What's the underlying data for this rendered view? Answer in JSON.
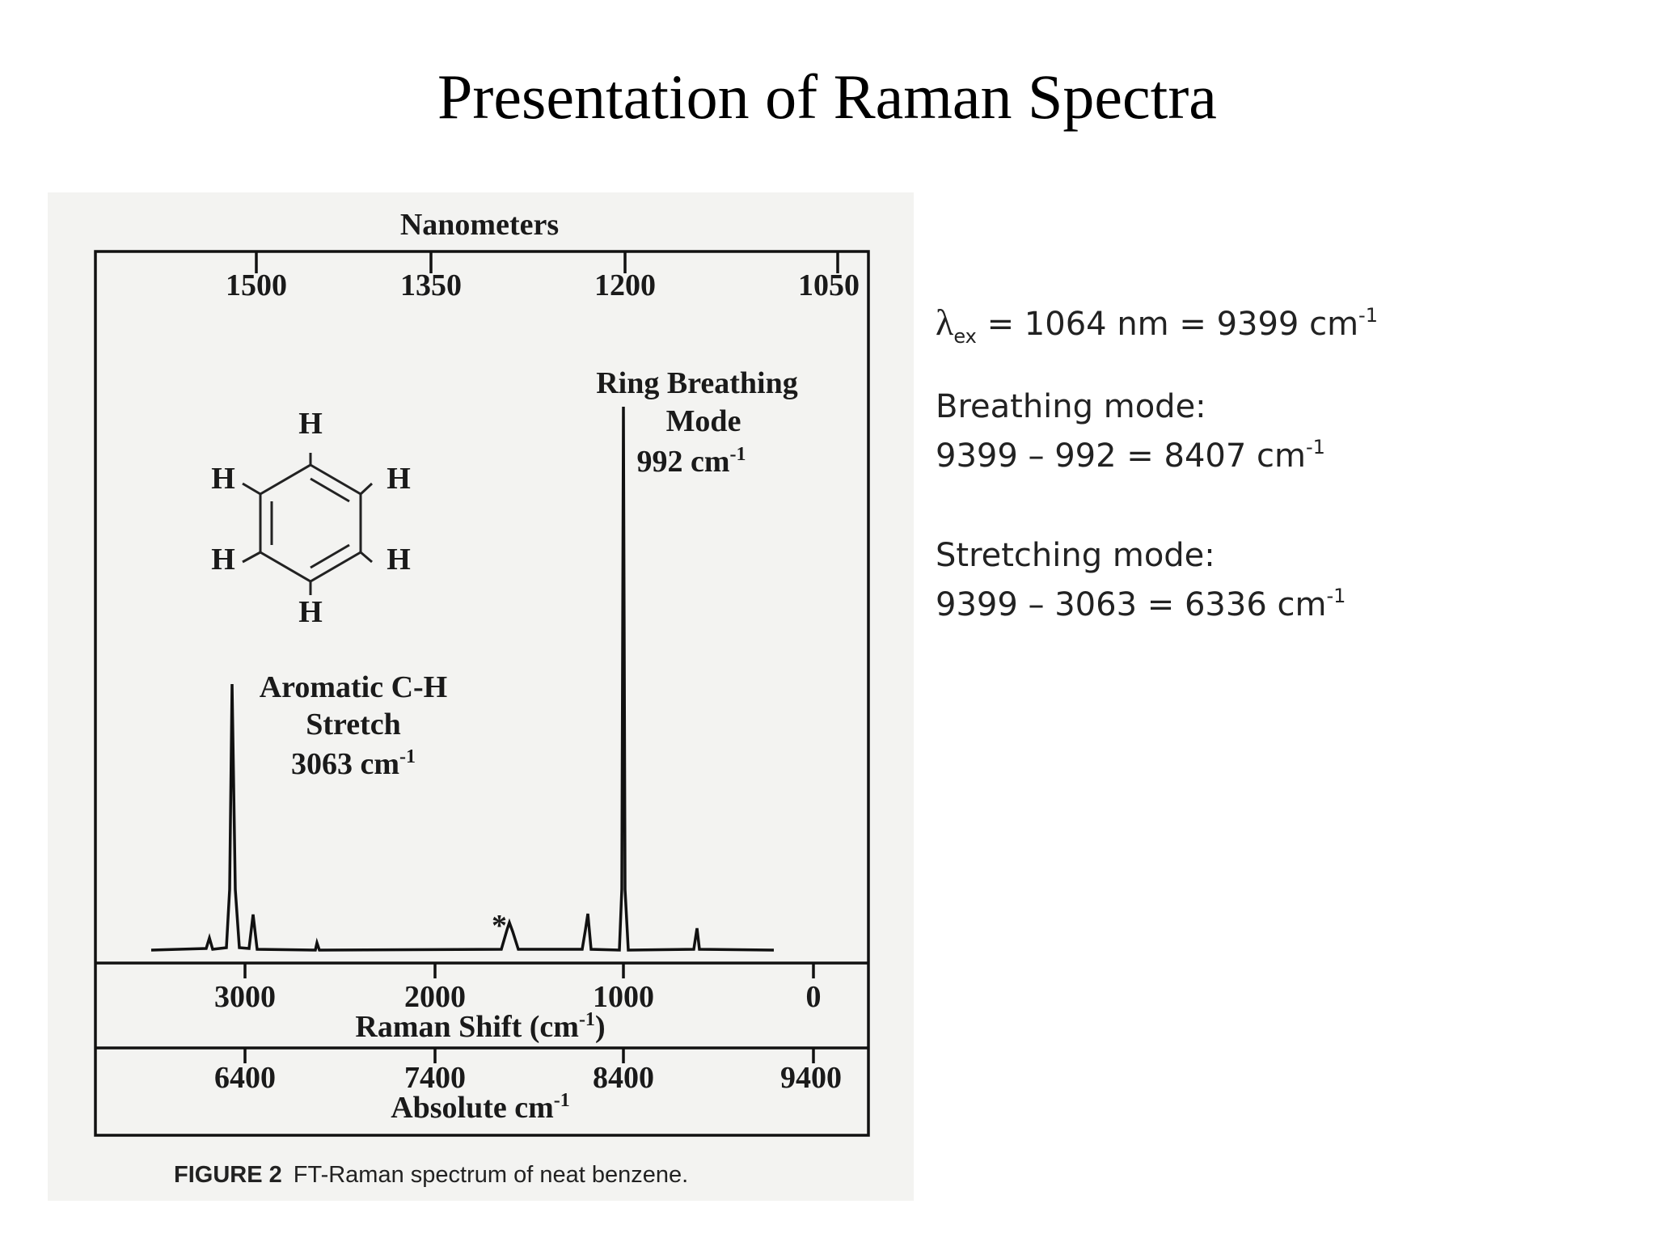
{
  "header": {
    "title": "Presentation of Raman Spectra"
  },
  "figure": {
    "top_axis_label": "Nanometers",
    "nanometer_ticks": [
      1500,
      1350,
      1200,
      1050
    ],
    "raman_ticks": [
      3000,
      2000,
      1000,
      0
    ],
    "raman_axis_label": {
      "text": "Raman Shift (cm",
      "sup": "-1",
      "close": ")"
    },
    "absolute_ticks": [
      6400,
      7400,
      8400,
      9400
    ],
    "absolute_axis_label": {
      "text": "Absolute cm",
      "sup": "-1"
    },
    "annotations": [
      {
        "lines": [
          "Ring Breathing",
          "Mode"
        ],
        "wavenumber": "992 cm",
        "sup": "-1"
      },
      {
        "lines": [
          "Aromatic C-H",
          "Stretch"
        ],
        "wavenumber": "3063 cm",
        "sup": "-1"
      }
    ],
    "molecule_atoms": [
      "H",
      "H",
      "H",
      "H",
      "H",
      "H"
    ],
    "caption": {
      "label": "FIGURE 2",
      "text": "FT-Raman spectrum of neat benzene."
    }
  },
  "notes": {
    "excitation": {
      "symbol": "λ",
      "sub": "ex",
      "text": " = 1064 nm = 9399 cm",
      "sup": "-1"
    },
    "breathing": {
      "heading": "Breathing mode:",
      "text": "9399 – 992 = 8407 cm",
      "sup": "-1"
    },
    "stretching": {
      "heading": "Stretching mode:",
      "text": "9399 – 3063 = 6336 cm",
      "sup": "-1"
    }
  }
}
